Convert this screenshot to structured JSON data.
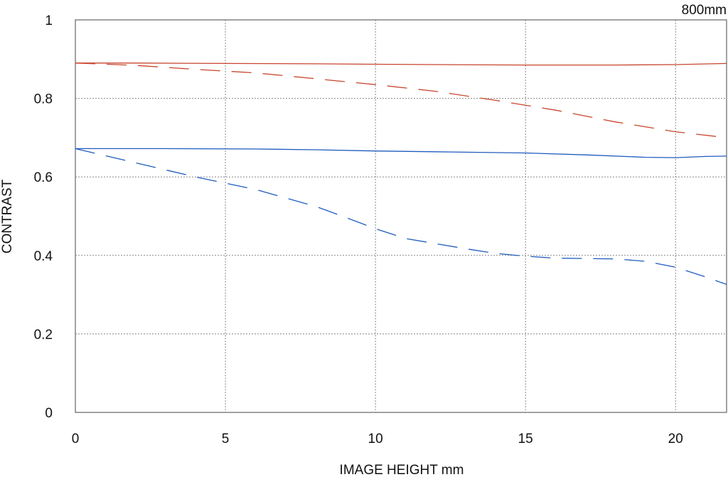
{
  "chart_data": {
    "type": "line",
    "corner_note": "800mm",
    "xlabel": "IMAGE HEIGHT  mm",
    "ylabel": "CONTRAST",
    "xlim": [
      0,
      21.7
    ],
    "ylim": [
      0,
      1
    ],
    "x_ticks": [
      0,
      5,
      10,
      15,
      20
    ],
    "x_tick_labels": [
      "0",
      "5",
      "10",
      "15",
      "20"
    ],
    "y_ticks": [
      0,
      0.2,
      0.4,
      0.6,
      0.8,
      1
    ],
    "y_tick_labels": [
      "0",
      "0.2",
      "0.4",
      "0.6",
      "0.8",
      "1"
    ],
    "grid": true,
    "legend": "none",
    "series": [
      {
        "color": "#c8452d",
        "style": "solid",
        "points": [
          [
            0,
            0.89
          ],
          [
            2,
            0.89
          ],
          [
            5,
            0.889
          ],
          [
            8,
            0.888
          ],
          [
            10,
            0.887
          ],
          [
            12,
            0.886
          ],
          [
            15,
            0.885
          ],
          [
            18,
            0.885
          ],
          [
            20,
            0.886
          ],
          [
            21.7,
            0.889
          ]
        ]
      },
      {
        "color": "#c8452d",
        "style": "dashed",
        "points": [
          [
            0,
            0.89
          ],
          [
            2,
            0.884
          ],
          [
            4,
            0.874
          ],
          [
            6,
            0.865
          ],
          [
            8,
            0.85
          ],
          [
            10,
            0.835
          ],
          [
            12,
            0.818
          ],
          [
            14,
            0.795
          ],
          [
            16,
            0.77
          ],
          [
            18,
            0.74
          ],
          [
            20,
            0.715
          ],
          [
            21.7,
            0.7
          ]
        ]
      },
      {
        "color": "#1f5bbf",
        "style": "solid",
        "points": [
          [
            0,
            0.672
          ],
          [
            3,
            0.672
          ],
          [
            6,
            0.671
          ],
          [
            8,
            0.669
          ],
          [
            10,
            0.666
          ],
          [
            12,
            0.664
          ],
          [
            15,
            0.661
          ],
          [
            17,
            0.656
          ],
          [
            19,
            0.65
          ],
          [
            20,
            0.649
          ],
          [
            21,
            0.652
          ],
          [
            21.7,
            0.653
          ]
        ]
      },
      {
        "color": "#1f5bbf",
        "style": "dashed",
        "points": [
          [
            0,
            0.672
          ],
          [
            2,
            0.636
          ],
          [
            4,
            0.6
          ],
          [
            6,
            0.568
          ],
          [
            8,
            0.525
          ],
          [
            9,
            0.497
          ],
          [
            10,
            0.468
          ],
          [
            11,
            0.443
          ],
          [
            12,
            0.43
          ],
          [
            13,
            0.417
          ],
          [
            14,
            0.405
          ],
          [
            15,
            0.398
          ],
          [
            16,
            0.393
          ],
          [
            17,
            0.392
          ],
          [
            18,
            0.391
          ],
          [
            19,
            0.385
          ],
          [
            20,
            0.37
          ],
          [
            21,
            0.345
          ],
          [
            21.7,
            0.326
          ]
        ]
      }
    ]
  }
}
